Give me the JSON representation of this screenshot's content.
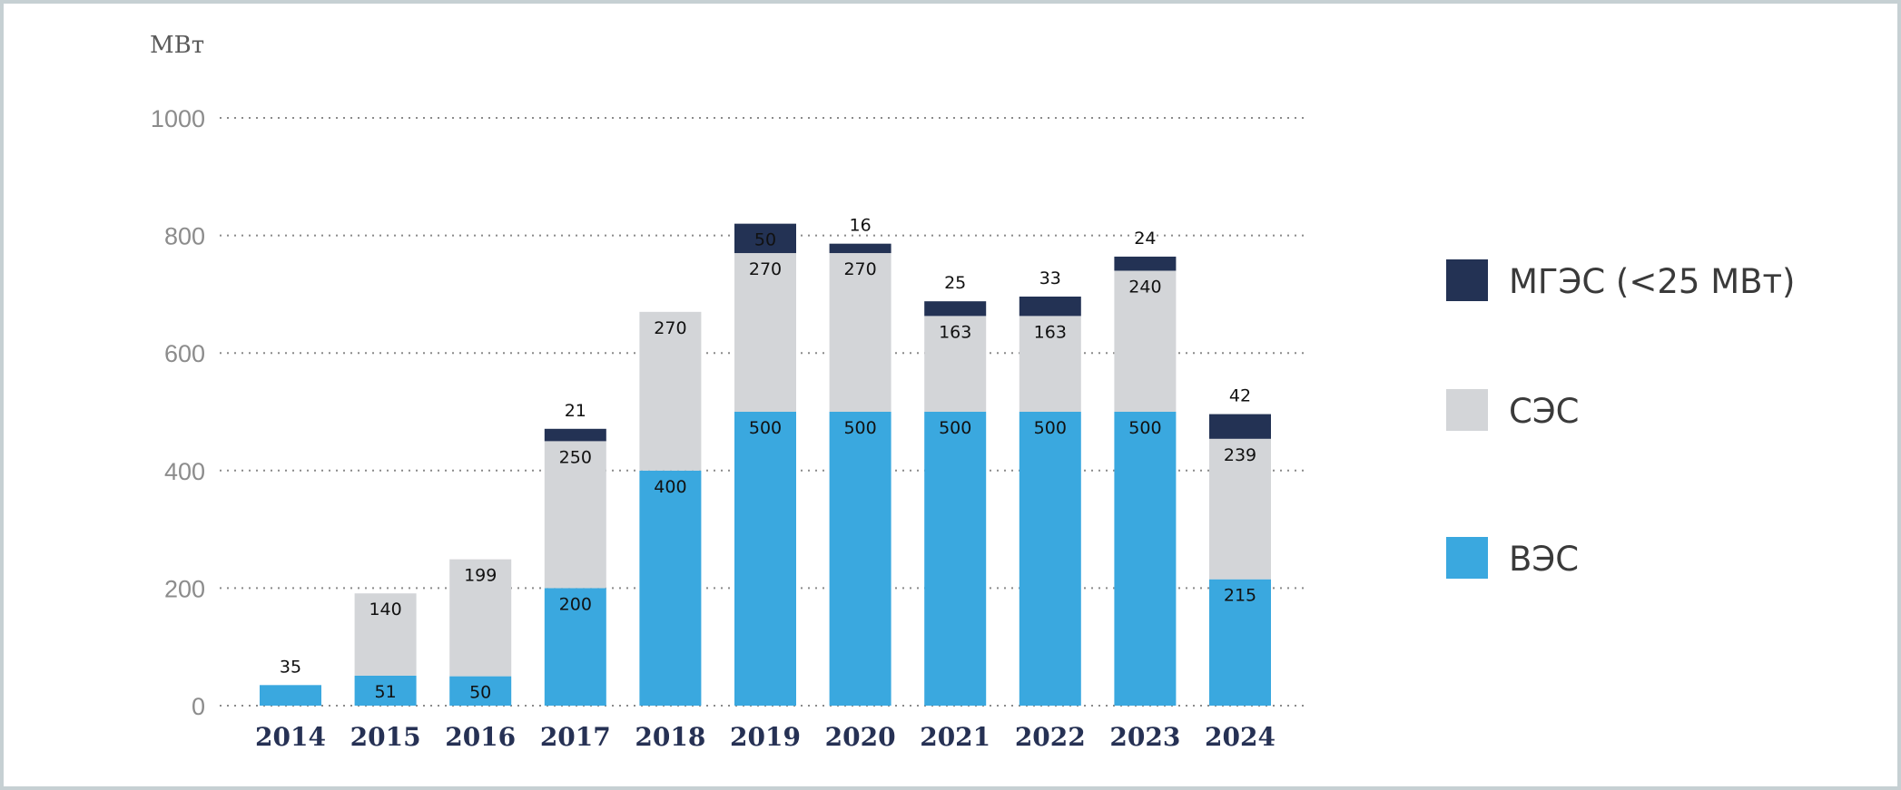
{
  "chart_data": {
    "type": "bar",
    "stacked": true,
    "unit_label": "МВт",
    "title": "",
    "xlabel": "",
    "ylabel": "МВт",
    "ylim": [
      0,
      1000
    ],
    "yticks": [
      0,
      200,
      400,
      600,
      800,
      1000
    ],
    "grid": true,
    "legend_position": "right",
    "categories": [
      "2014",
      "2015",
      "2016",
      "2017",
      "2018",
      "2019",
      "2020",
      "2021",
      "2022",
      "2023",
      "2024"
    ],
    "series": [
      {
        "name": "ВЭС",
        "color": "#3aa8df",
        "values": [
          35,
          51,
          50,
          200,
          400,
          500,
          500,
          500,
          500,
          500,
          215
        ]
      },
      {
        "name": "СЭС",
        "color": "#d3d5d8",
        "values": [
          0,
          140,
          199,
          250,
          270,
          270,
          270,
          163,
          163,
          240,
          239
        ]
      },
      {
        "name": "МГЭС (<25 МВт)",
        "color": "#233254",
        "values": [
          0,
          0,
          0,
          21,
          0,
          50,
          16,
          25,
          33,
          24,
          42
        ]
      }
    ],
    "legend_order": [
      "МГЭС (<25 МВт)",
      "СЭС",
      "ВЭС"
    ]
  }
}
